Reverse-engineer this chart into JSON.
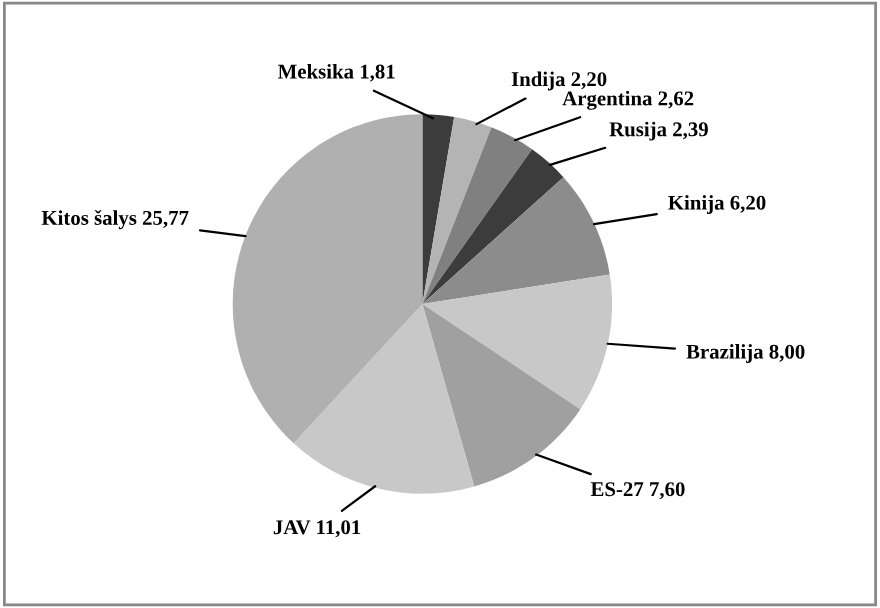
{
  "chart_data": {
    "type": "pie",
    "categories": [
      "Meksika",
      "Indija",
      "Argentina",
      "Rusija",
      "Kinija",
      "Brazilija",
      "ES-27",
      "JAV",
      "Kitos šalys"
    ],
    "values": [
      1.81,
      2.2,
      2.62,
      2.39,
      6.2,
      8.0,
      7.6,
      11.01,
      25.77
    ],
    "value_labels": [
      "1,81",
      "2,20",
      "2,62",
      "2,39",
      "6,20",
      "8,00",
      "7,60",
      "11,01",
      "25,77"
    ],
    "colors": [
      "#3c3c3c",
      "#b4b4b4",
      "#808080",
      "#3c3c3c",
      "#8c8c8c",
      "#c8c8c8",
      "#a0a0a0",
      "#c8c8c8",
      "#b0b0b0"
    ],
    "legend": false
  }
}
